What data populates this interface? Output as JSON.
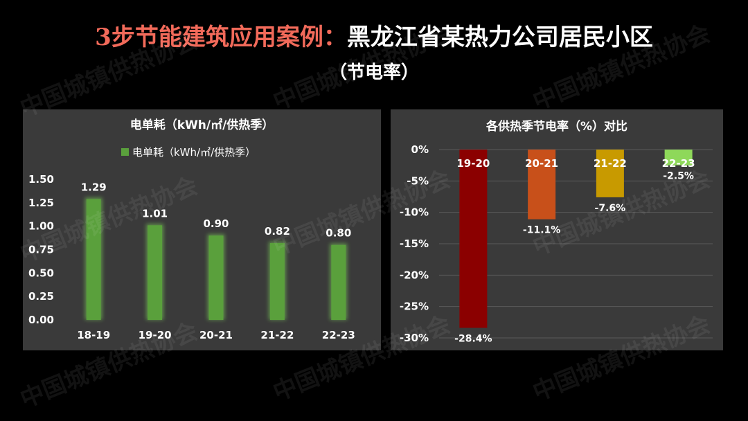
{
  "header": {
    "title_highlight": "3步节能建筑应用案例：",
    "title_rest": "黑龙江省某热力公司居民小区",
    "subtitle": "（节电率）"
  },
  "watermark": "中国城镇供热协会",
  "colors": {
    "background": "#000000",
    "panel": "#3a3a3a",
    "title_highlight": "#f26a5a",
    "bar_green": "#5aa03c"
  },
  "chart_data": [
    {
      "type": "bar",
      "title": "电单耗（kWh/㎡/供热季）",
      "legend": [
        "电单耗（kWh/㎡/供热季）"
      ],
      "legend_position": "top",
      "categories": [
        "18-19",
        "19-20",
        "20-21",
        "21-22",
        "22-23"
      ],
      "series": [
        {
          "name": "电单耗（kWh/㎡/供热季）",
          "values": [
            1.29,
            1.01,
            0.9,
            0.82,
            0.8
          ]
        }
      ],
      "value_labels": [
        "1.29",
        "1.01",
        "0.90",
        "0.82",
        "0.80"
      ],
      "ylim": [
        0,
        1.5
      ],
      "yticks": [
        "0.00",
        "0.25",
        "0.50",
        "0.75",
        "1.00",
        "1.25",
        "1.50"
      ],
      "grid": false,
      "color": "#5aa03c"
    },
    {
      "type": "bar",
      "title": "各供热季节电率（%）对比",
      "categories": [
        "19-20",
        "20-21",
        "21-22",
        "22-23"
      ],
      "values": [
        -28.4,
        -11.1,
        -7.6,
        -2.5
      ],
      "value_labels": [
        "-28.4%",
        "-11.1%",
        "-7.6%",
        "-2.5%"
      ],
      "colors": [
        "#8b0000",
        "#c8501a",
        "#c89a00",
        "#8ed85a"
      ],
      "ylim": [
        -30,
        0
      ],
      "yticks": [
        "0%",
        "-5%",
        "-10%",
        "-15%",
        "-20%",
        "-25%",
        "-30%"
      ],
      "grid": true
    }
  ]
}
